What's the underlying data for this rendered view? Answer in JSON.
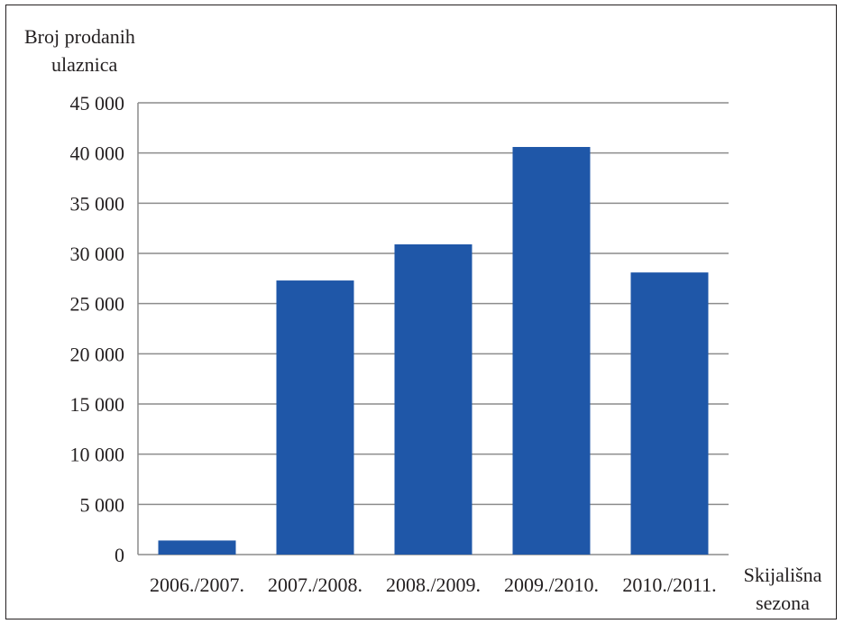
{
  "chart_data": {
    "type": "bar",
    "ylabel_lines": [
      "Broj prodanih",
      "ulaznica"
    ],
    "xlabel_lines": [
      "Skijališna",
      "sezona"
    ],
    "categories": [
      "2006./2007.",
      "2007./2008.",
      "2008./2009.",
      "2009./2010.",
      "2010./2011."
    ],
    "values": [
      1400,
      27300,
      30900,
      40600,
      28100
    ],
    "ylim": [
      0,
      45000
    ],
    "yticks": [
      0,
      5000,
      10000,
      15000,
      20000,
      25000,
      30000,
      35000,
      40000,
      45000
    ],
    "ytick_labels": [
      "0",
      "5 000",
      "10 000",
      "15 000",
      "20 000",
      "25 000",
      "30 000",
      "35 000",
      "40 000",
      "45 000"
    ],
    "grid": true,
    "bar_color": "#1f57a8",
    "grid_color": "#8c8c8c"
  }
}
